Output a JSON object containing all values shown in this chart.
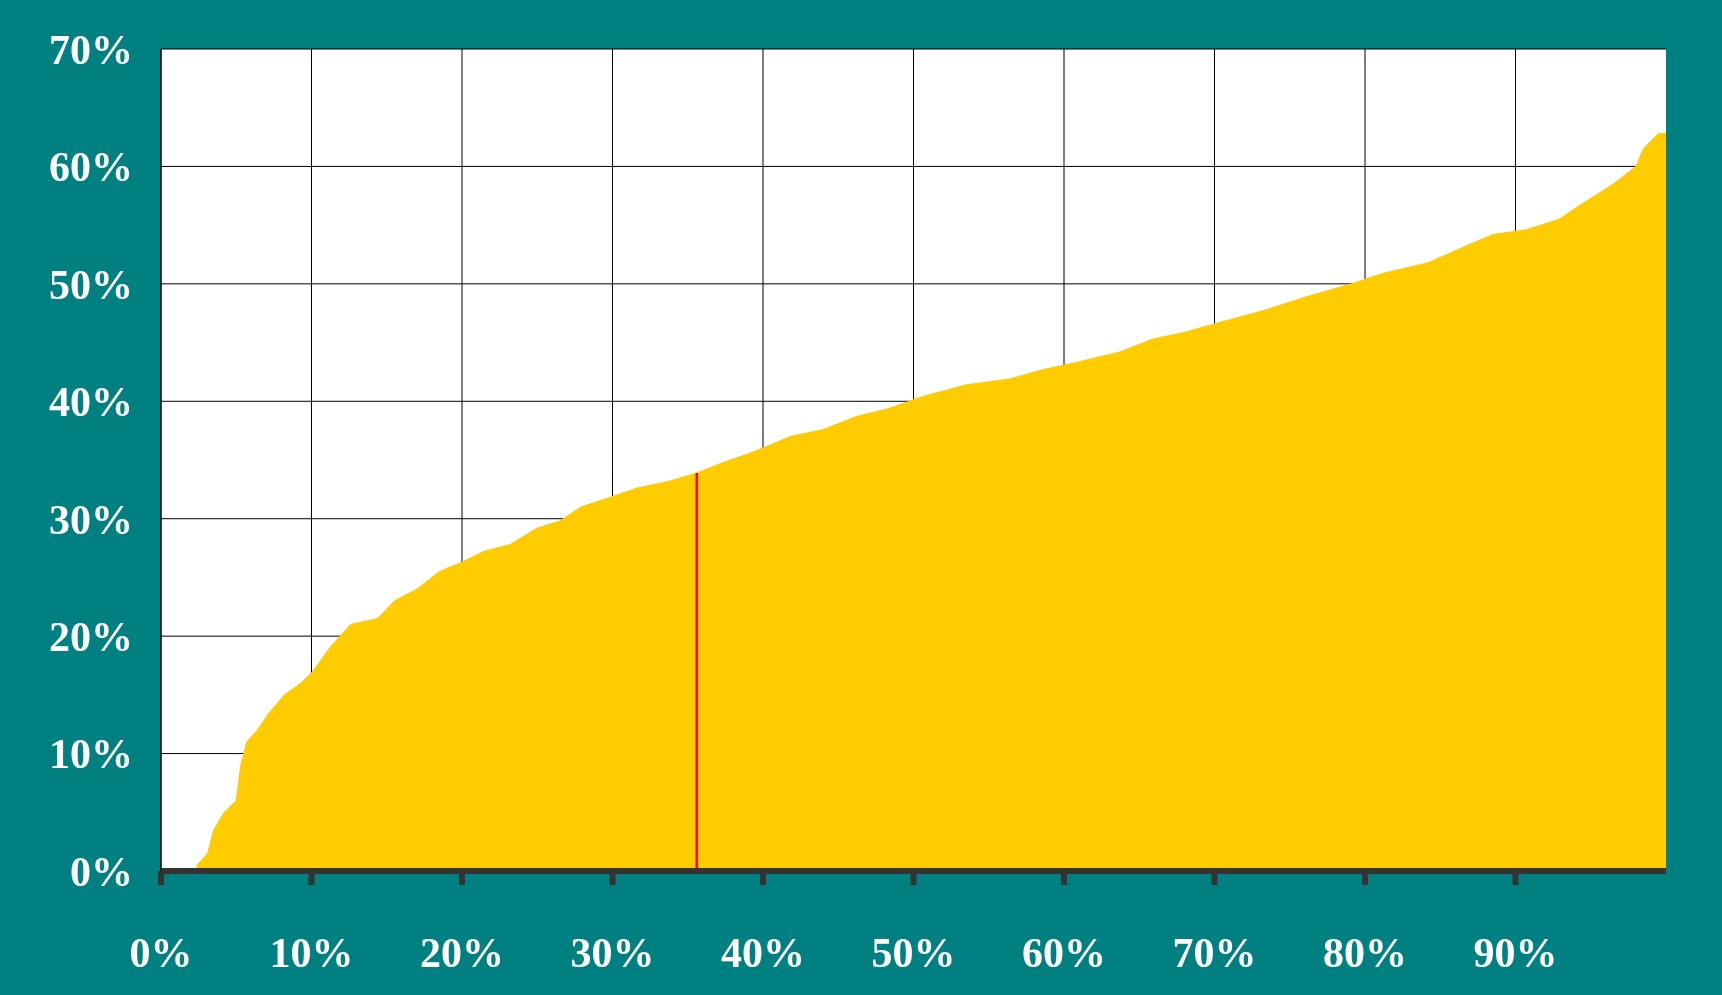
{
  "chart_data": {
    "type": "area",
    "xlim": [
      0,
      100
    ],
    "ylim": [
      0,
      70
    ],
    "xticks": [
      {
        "value": 0,
        "label": "0%"
      },
      {
        "value": 10,
        "label": "10%"
      },
      {
        "value": 20,
        "label": "20%"
      },
      {
        "value": 30,
        "label": "30%"
      },
      {
        "value": 40,
        "label": "40%"
      },
      {
        "value": 50,
        "label": "50%"
      },
      {
        "value": 60,
        "label": "60%"
      },
      {
        "value": 70,
        "label": "70%"
      },
      {
        "value": 80,
        "label": "80%"
      },
      {
        "value": 90,
        "label": "90%"
      }
    ],
    "yticks": [
      {
        "value": 0,
        "label": "0%"
      },
      {
        "value": 10,
        "label": "10%"
      },
      {
        "value": 20,
        "label": "20%"
      },
      {
        "value": 30,
        "label": "30%"
      },
      {
        "value": 40,
        "label": "40%"
      },
      {
        "value": 50,
        "label": "50%"
      },
      {
        "value": 60,
        "label": "60%"
      },
      {
        "value": 70,
        "label": "70%"
      }
    ],
    "grid": true,
    "series": [
      {
        "color": "#ffcc00",
        "x": [
          2.4,
          2.4,
          3.1,
          3.5,
          4.2,
          5.0,
          5.3,
          5.7,
          6.4,
          7.2,
          8.2,
          9.3,
          10.1,
          11.2,
          12.6,
          14.4,
          15.5,
          17.0,
          18.5,
          20.0,
          21.4,
          23.2,
          25.0,
          26.5,
          27.9,
          29.8,
          31.6,
          33.8,
          35.6,
          37.4,
          39.6,
          41.8,
          44.0,
          46.2,
          48.4,
          50.6,
          53.5,
          56.4,
          58.6,
          60.8,
          63.7,
          65.9,
          68.1,
          70.3,
          73.2,
          76.1,
          79.1,
          81.2,
          84.2,
          86.3,
          88.5,
          90.7,
          92.9,
          94.4,
          96.5,
          98.0,
          98.5,
          99.5,
          100
        ],
        "values": [
          0,
          0.5,
          1.5,
          3.5,
          5,
          6,
          9,
          11,
          12,
          13.5,
          15,
          16,
          17,
          19,
          21,
          21.5,
          23,
          24,
          25.5,
          26.3,
          27.2,
          27.8,
          29.2,
          29.8,
          31,
          31.8,
          32.6,
          33.2,
          33.9,
          34.8,
          35.8,
          37,
          37.6,
          38.7,
          39.4,
          40.4,
          41.4,
          41.9,
          42.7,
          43.3,
          44.2,
          45.3,
          45.9,
          46.7,
          47.7,
          48.9,
          50,
          50.9,
          51.8,
          53,
          54.2,
          54.6,
          55.5,
          56.8,
          58.5,
          60,
          61.5,
          62.8,
          62.8
        ]
      },
      {
        "type": "line",
        "color": "#ff0000",
        "x": [
          35.6,
          35.6
        ],
        "values": [
          0,
          33.9
        ]
      }
    ]
  }
}
